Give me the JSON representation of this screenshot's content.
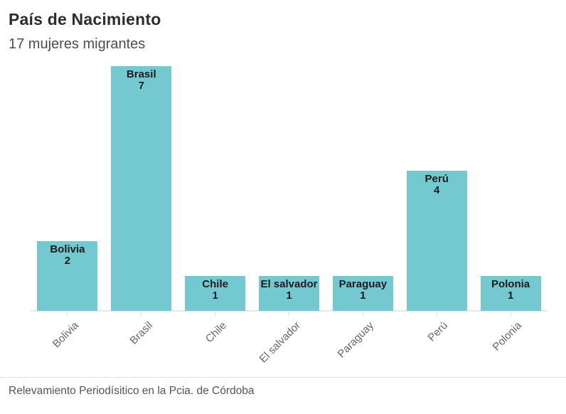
{
  "header": {
    "title": "País de Nacimiento",
    "subtitle": "17 mujeres migrantes"
  },
  "footer": {
    "source": "Relevamiento Periodísitico en la Pcia. de Córdoba"
  },
  "chart_data": {
    "type": "bar",
    "title": "País de Nacimiento",
    "subtitle": "17 mujeres migrantes",
    "categories": [
      "Bolivia",
      "Brasil",
      "Chile",
      "El salvador",
      "Paraguay",
      "Perú",
      "Polonia"
    ],
    "values": [
      2,
      7,
      1,
      1,
      1,
      4,
      1
    ],
    "total": 17,
    "xlabel": "",
    "ylabel": "",
    "ylim": [
      0,
      7
    ],
    "grid": false,
    "legend_position": "none",
    "bar_labels_inside": true,
    "x_tick_rotation": -45,
    "bar_color": "#74c9d0",
    "label_color": "#1c1c1c",
    "axis_label_color": "#666666",
    "source_note": "Relevamiento Periodísitico en la Pcia. de Córdoba"
  }
}
